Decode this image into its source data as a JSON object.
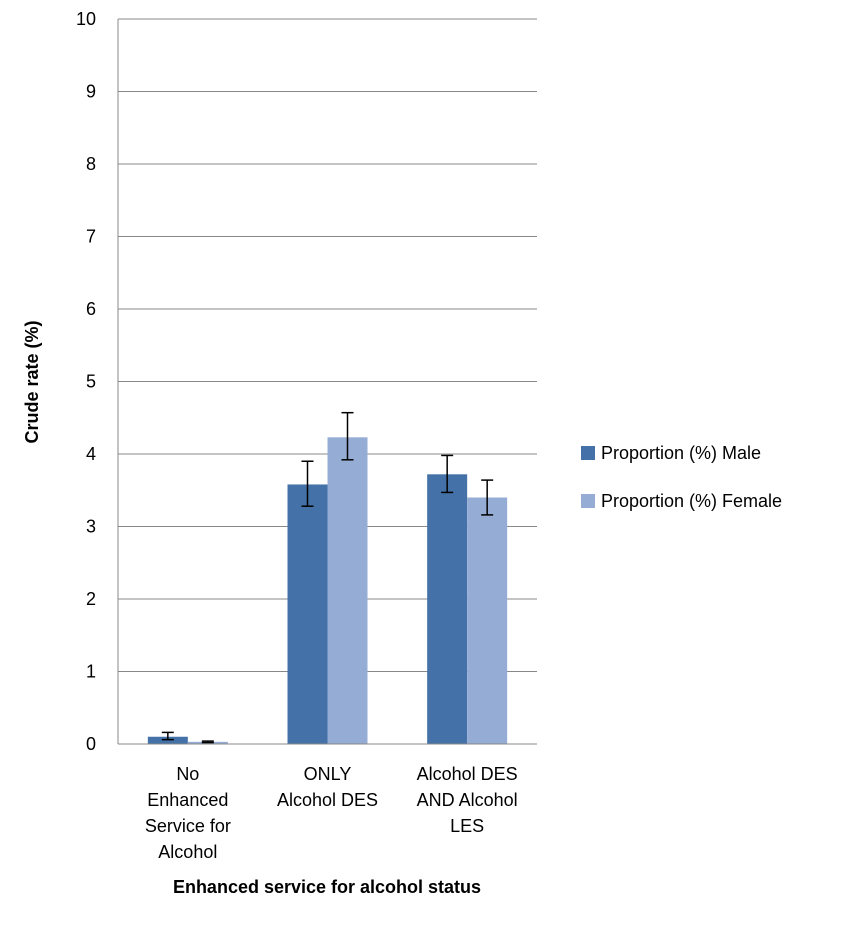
{
  "chart_data": {
    "type": "bar",
    "xlabel": "Enhanced service for alcohol status",
    "ylabel": "Crude rate (%)",
    "ylim": [
      0,
      10
    ],
    "yticks": [
      "0",
      "1",
      "2",
      "3",
      "4",
      "5",
      "6",
      "7",
      "8",
      "9",
      "10"
    ],
    "grid": true,
    "legend_position": "right",
    "categories": [
      [
        "No",
        "Enhanced",
        "Service for",
        "Alcohol"
      ],
      [
        "ONLY",
        "Alcohol DES"
      ],
      [
        "Alcohol DES",
        "AND Alcohol",
        "LES"
      ]
    ],
    "series": [
      {
        "name": "Proportion (%) Male",
        "color": "#4472a8",
        "values": [
          0.1,
          3.58,
          3.72
        ],
        "error_low": [
          0.06,
          3.28,
          3.47
        ],
        "error_high": [
          0.16,
          3.9,
          3.98
        ]
      },
      {
        "name": "Proportion (%) Female",
        "color": "#95acd4",
        "values": [
          0.03,
          4.23,
          3.4
        ],
        "error_low": [
          0.02,
          3.92,
          3.16
        ],
        "error_high": [
          0.04,
          4.57,
          3.64
        ]
      }
    ]
  }
}
